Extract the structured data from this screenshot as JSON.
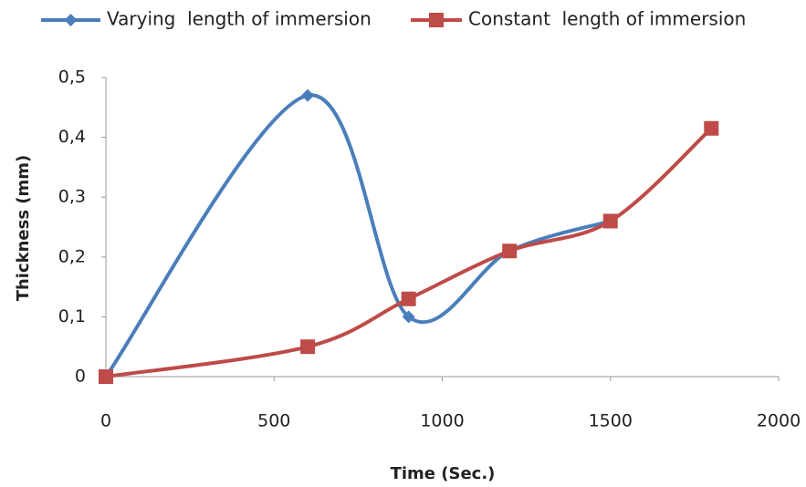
{
  "chart_data": {
    "type": "line",
    "x_label": "Time (Sec.)",
    "y_label": "Thickness (mm)",
    "xlim": [
      0,
      2000
    ],
    "xticks": [
      0,
      500,
      1000,
      1500,
      2000
    ],
    "ylim": [
      0,
      0.5
    ],
    "yticks": [
      0,
      {
        "value": 0.1,
        "label": "0,1"
      },
      {
        "value": 0.2,
        "label": "0,2"
      },
      {
        "value": 0.3,
        "label": "0,3"
      },
      {
        "value": 0.4,
        "label": "0,4"
      },
      {
        "value": 0.5,
        "label": "0,5"
      }
    ],
    "smooth": true,
    "series": [
      {
        "name": "Varying  length of immersion",
        "color": "#4a7ebb",
        "marker": "diamond",
        "x": [
          0,
          600,
          900,
          1200,
          1500
        ],
        "values": [
          0,
          0.47,
          0.1,
          0.21,
          0.26
        ]
      },
      {
        "name": "Constant  length of immersion",
        "color": "#be4b48",
        "marker": "square",
        "x": [
          0,
          600,
          900,
          1200,
          1500,
          1800
        ],
        "values": [
          0,
          0.05,
          0.13,
          0.21,
          0.26,
          0.415
        ]
      }
    ]
  }
}
